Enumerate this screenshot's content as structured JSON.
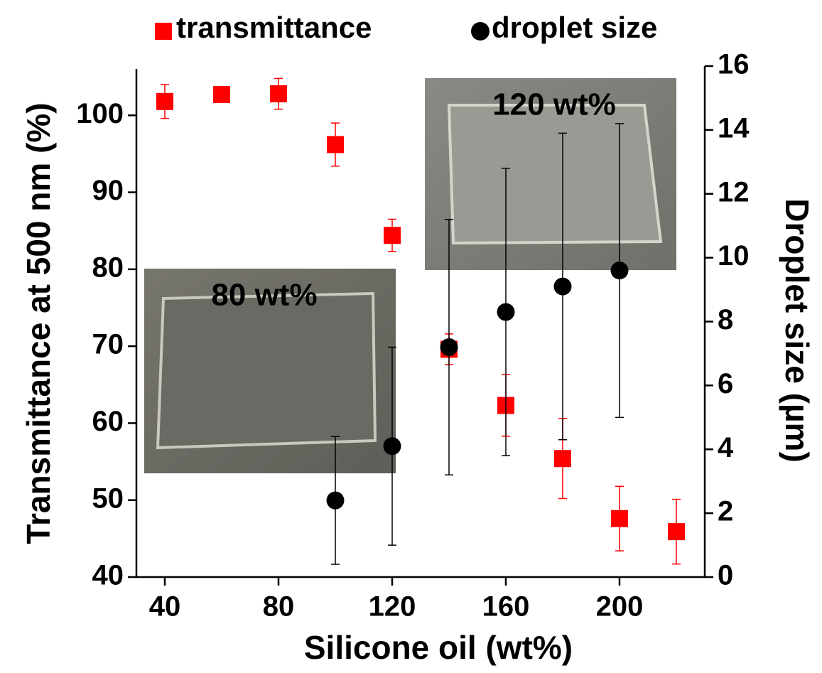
{
  "chart_data": {
    "type": "scatter",
    "x_label": "Silicone oil (wt%)",
    "y_label": "Transmittance at 500 nm (%)",
    "y2_label": "Droplet size (µm)",
    "xlim": [
      30,
      230
    ],
    "xticks": [
      40,
      80,
      120,
      160,
      200
    ],
    "ylim": [
      40,
      106.4
    ],
    "yticks": [
      40,
      50,
      60,
      70,
      80,
      90,
      100
    ],
    "y2lim": [
      0,
      16
    ],
    "y2ticks": [
      0,
      2,
      4,
      6,
      8,
      10,
      12,
      14,
      16
    ],
    "insets": [
      "80 wt%",
      "120 wt%"
    ],
    "series": [
      {
        "name": "transmittance",
        "color": "#ff0000",
        "marker": "square",
        "x": [
          40,
          60,
          80,
          100,
          120,
          140,
          160,
          180,
          200,
          220
        ],
        "values": [
          101.8,
          102.7,
          102.8,
          96.2,
          84.4,
          69.6,
          62.3,
          55.4,
          47.6,
          45.9
        ],
        "errors": [
          2.2,
          1,
          2,
          2.8,
          2.1,
          2,
          4,
          5.2,
          4.2,
          4.2
        ]
      },
      {
        "name": "droplet size",
        "color": "#000000",
        "marker": "circle",
        "axis": "y2",
        "x": [
          100,
          120,
          140,
          160,
          180,
          200
        ],
        "values": [
          2.4,
          4.1,
          7.2,
          8.3,
          9.1,
          9.6
        ],
        "errors": [
          2,
          3.1,
          4,
          4.5,
          4.8,
          4.6
        ]
      }
    ]
  }
}
